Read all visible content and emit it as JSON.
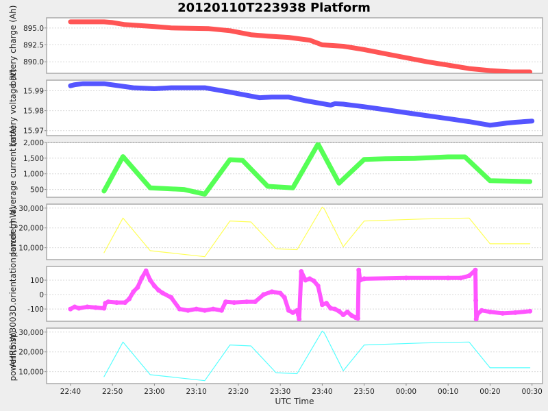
{
  "title": "20120110T223938 Platform",
  "chart_data": {
    "type": "line",
    "title": "20120110T223938 Platform",
    "xlabel": "UTC Time",
    "x_ticks": [
      "22:40",
      "22:50",
      "23:00",
      "23:10",
      "23:20",
      "23:30",
      "23:40",
      "23:50",
      "00:00",
      "00:10",
      "00:20",
      "00:30"
    ],
    "x_unit": "minutes since 22:40",
    "xlim": [
      -5.7,
      112.5
    ],
    "grid": true,
    "legend": "none",
    "panels": [
      {
        "ylabel": "battery charge (Ah)",
        "color": "#ff5555",
        "style": "thick",
        "yticks": [
          890.0,
          892.5,
          895.0
        ],
        "ytick_labels": [
          "890.0",
          "892.5",
          "895.0"
        ],
        "ylim": [
          888.3,
          896.5
        ],
        "x": [
          0,
          8,
          10,
          13,
          20,
          24,
          33,
          38,
          43,
          47,
          52,
          57,
          60,
          65,
          70,
          75,
          80,
          85,
          90,
          95,
          100,
          105,
          109.5
        ],
        "values": [
          895.9,
          895.9,
          895.8,
          895.5,
          895.2,
          895.0,
          894.9,
          894.6,
          894.0,
          893.8,
          893.6,
          893.2,
          892.5,
          892.3,
          891.8,
          891.2,
          890.6,
          890.0,
          889.5,
          889.0,
          888.7,
          888.5,
          888.5
        ]
      },
      {
        "ylabel": "battery voltage (V)",
        "color": "#5555ff",
        "style": "thick",
        "yticks": [
          15.97,
          15.98,
          15.99
        ],
        "ytick_labels": [
          "15.97",
          "15.98",
          "15.99"
        ],
        "ylim": [
          15.9675,
          15.9953
        ],
        "x": [
          0,
          1,
          3,
          8,
          15,
          20,
          24,
          32,
          38,
          45,
          48,
          52,
          56,
          62,
          63,
          65,
          70,
          75,
          80,
          85,
          90,
          95,
          100,
          103,
          104,
          106,
          110
        ],
        "values": [
          15.9925,
          15.993,
          15.9935,
          15.9935,
          15.9915,
          15.991,
          15.9915,
          15.9915,
          15.9893,
          15.9865,
          15.9868,
          15.9868,
          15.985,
          15.9828,
          15.9835,
          15.9833,
          15.982,
          15.9805,
          15.979,
          15.9775,
          15.976,
          15.9745,
          15.9727,
          15.9735,
          15.9738,
          15.9742,
          15.9748
        ]
      },
      {
        "ylabel": "average current (mA)",
        "color": "#55ff55",
        "style": "thick",
        "yticks": [
          500,
          1000,
          1500,
          2000
        ],
        "ytick_labels": [
          "500",
          "1,000",
          "1,500",
          "2,000"
        ],
        "ylim": [
          250,
          2000
        ],
        "x": [
          8,
          12.5,
          19,
          27,
          32,
          38,
          41,
          47,
          53,
          59,
          64,
          70,
          75,
          82,
          90,
          94,
          100,
          109.5
        ],
        "values": [
          450,
          1550,
          550,
          500,
          350,
          1450,
          1430,
          600,
          550,
          1950,
          700,
          1460,
          1480,
          1490,
          1540,
          1540,
          780,
          750
        ]
      },
      {
        "ylabel": "power (mW)",
        "color": "#ffff55",
        "style": "thin",
        "yticks": [
          10000,
          20000,
          30000
        ],
        "ytick_labels": [
          "10,000",
          "20,000",
          "30,000"
        ],
        "ylim": [
          4000,
          32000
        ],
        "x": [
          8,
          12.5,
          19,
          32,
          38,
          43,
          49,
          54,
          60,
          60.5,
          65,
          70,
          84,
          95,
          100,
          109.5
        ],
        "values": [
          7500,
          25000,
          8500,
          5500,
          23500,
          23000,
          9500,
          9000,
          30500,
          29500,
          10500,
          23500,
          24500,
          25000,
          12000,
          12000
        ]
      },
      {
        "ylabel": "AHRS.sp3003D.orientation (arcdeg)",
        "color": "#ff55ff",
        "style": "markers",
        "yticks": [
          -100,
          0,
          100
        ],
        "ytick_labels": [
          "-100",
          "0",
          "100"
        ],
        "ylim": [
          -185,
          195
        ],
        "x": [
          0,
          1,
          2,
          4,
          6,
          8,
          8.3,
          9,
          11,
          13,
          14,
          15,
          16,
          17,
          18,
          19,
          20,
          21,
          22,
          24,
          26,
          28,
          30,
          32,
          34,
          36,
          37,
          39,
          42,
          44,
          46,
          48,
          50,
          51,
          52,
          53,
          54,
          54.3,
          54.5,
          55,
          56,
          57,
          58,
          59,
          60,
          61,
          62,
          63,
          64,
          65,
          66,
          67,
          68,
          68.5,
          68.7,
          69,
          70,
          80,
          90,
          93,
          95,
          96.5,
          96.6,
          96.7,
          97,
          98,
          100,
          103,
          106,
          109.5
        ],
        "values": [
          -100,
          -85,
          -95,
          -85,
          -90,
          -95,
          -60,
          -50,
          -55,
          -55,
          -30,
          20,
          50,
          115,
          165,
          100,
          60,
          30,
          10,
          -20,
          -100,
          -110,
          -100,
          -110,
          -100,
          -110,
          -50,
          -55,
          -50,
          -50,
          0,
          20,
          10,
          -20,
          -110,
          -125,
          -110,
          -140,
          -170,
          160,
          100,
          110,
          95,
          60,
          -70,
          -60,
          -95,
          -100,
          -115,
          -140,
          -120,
          -145,
          -160,
          -165,
          170,
          100,
          110,
          115,
          115,
          115,
          130,
          170,
          -40,
          -170,
          -135,
          -110,
          -120,
          -130,
          -125,
          -115
        ]
      },
      {
        "ylabel": "power (mW)",
        "color": "#55ffff",
        "style": "thin",
        "yticks": [
          10000,
          20000,
          30000
        ],
        "ytick_labels": [
          "10,000",
          "20,000",
          "30,000"
        ],
        "ylim": [
          4000,
          32000
        ],
        "x": [
          8,
          12.5,
          19,
          32,
          38,
          43,
          49,
          54,
          60,
          60.5,
          65,
          70,
          84,
          95,
          100,
          109.5
        ],
        "values": [
          7500,
          25000,
          8500,
          5500,
          23500,
          23000,
          9500,
          9000,
          30500,
          29500,
          10500,
          23500,
          24500,
          25000,
          12000,
          12000
        ]
      }
    ]
  }
}
